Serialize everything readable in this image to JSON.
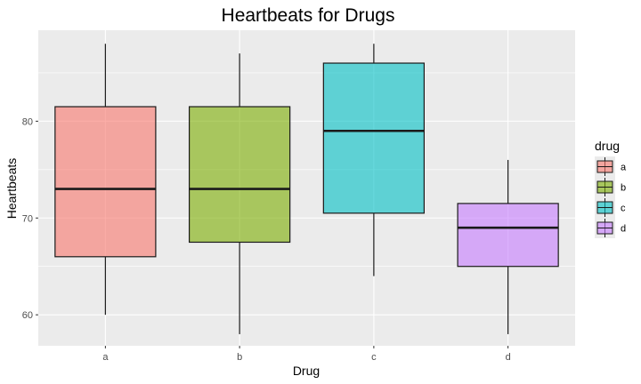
{
  "chart_data": {
    "type": "boxplot",
    "title": "Heartbeats for Drugs",
    "xlabel": "Drug",
    "ylabel": "Heartbeats",
    "categories": [
      "a",
      "b",
      "c",
      "d"
    ],
    "boxes": [
      {
        "category": "a",
        "min": 60,
        "q1": 66,
        "median": 73,
        "q3": 81.5,
        "max": 88
      },
      {
        "category": "b",
        "min": 58,
        "q1": 67.5,
        "median": 73,
        "q3": 81.5,
        "max": 87
      },
      {
        "category": "c",
        "min": 64,
        "q1": 70.5,
        "median": 79,
        "q3": 86,
        "max": 88
      },
      {
        "category": "d",
        "min": 58,
        "q1": 65,
        "median": 69,
        "q3": 71.5,
        "max": 76
      }
    ],
    "ylim": [
      56.8,
      89.4
    ],
    "yticks": [
      60,
      70,
      80
    ],
    "grid": true,
    "legend": {
      "title": "drug",
      "position": "right",
      "entries": [
        "a",
        "b",
        "c",
        "d"
      ]
    },
    "colors": {
      "a": "#F8766D",
      "b": "#7CAE00",
      "c": "#00BFC4",
      "d": "#C77CFF",
      "panel": "#EBEBEB",
      "grid": "#FFFFFF"
    },
    "fill_alpha": 0.6
  }
}
